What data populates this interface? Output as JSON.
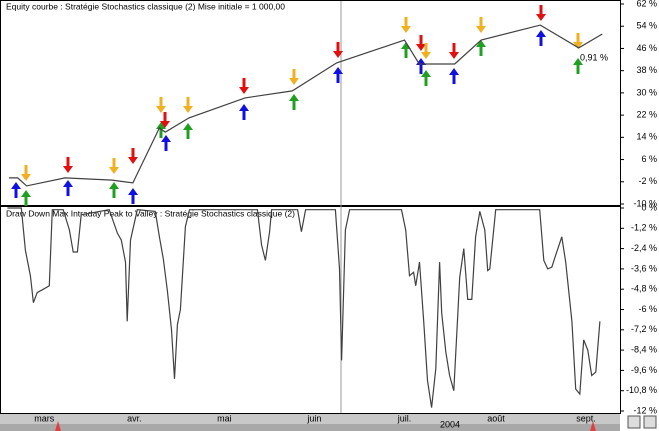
{
  "chart_data": [
    {
      "type": "line",
      "title": "Equity courbe : Stratégie Stochastics classique (2) Mise initiale = 1 000,00",
      "color": "#404040",
      "x": [
        64,
        67,
        70,
        83,
        99,
        106,
        115,
        117,
        125,
        144,
        160,
        175,
        198,
        203,
        215,
        224,
        244,
        257,
        265
      ],
      "values": [
        -0.6,
        -0.6,
        -3.5,
        -0.6,
        -1.4,
        -2.4,
        17.4,
        15.9,
        21,
        28.2,
        30.7,
        40.8,
        49,
        40.4,
        40.4,
        49,
        54.4,
        46.2,
        51.2
      ],
      "annotation": "0,91 %",
      "xlim": [
        61,
        271
      ],
      "ylim": [
        -10,
        62
      ],
      "yticks": [
        {
          "value": 62,
          "label": "62 %"
        },
        {
          "value": 54,
          "label": "54 %"
        },
        {
          "value": 46,
          "label": "46 %"
        },
        {
          "value": 38,
          "label": "38 %"
        },
        {
          "value": 30,
          "label": "30 %"
        },
        {
          "value": 22,
          "label": "22 %"
        },
        {
          "value": 14,
          "label": "14 %"
        },
        {
          "value": 6,
          "label": "6 %"
        },
        {
          "value": -2,
          "label": "-2 %"
        },
        {
          "value": -10,
          "label": "-10 %"
        }
      ]
    },
    {
      "type": "line",
      "title": "Draw Down Max Intraday Peak to Valley  : Stratégie Stochastics classique (2)",
      "color": "#404040",
      "x": [
        63.5,
        68.2,
        69.6,
        71.3,
        72.3,
        73.6,
        75.7,
        77.7,
        78.7,
        82.4,
        84.5,
        85.8,
        87.2,
        88.5,
        98,
        100.8,
        102.1,
        103.5,
        104.1,
        105.2,
        107.5,
        113.6,
        115,
        116.3,
        117.7,
        119.1,
        120.1,
        121.1,
        122.1,
        123.8,
        125.2,
        148.2,
        149.6,
        150.9,
        152.3,
        153,
        161.8,
        163.1,
        164.5,
        174.6,
        176,
        176.7,
        178,
        179.4,
        197,
        198.4,
        199.7,
        201.1,
        201.8,
        203.1,
        204.5,
        205.8,
        207.2,
        208.6,
        209.9,
        210.6,
        212,
        213.3,
        214.7,
        216,
        216.7,
        218.1,
        219.4,
        220.8,
        222.1,
        223.5,
        225.2,
        226.2,
        226.9,
        228.9,
        243.8,
        245.2,
        246.5,
        247.9,
        249.2,
        251.3,
        252.6,
        254.7,
        256,
        257.4,
        258.7,
        260.1,
        261.4,
        262.8,
        264.2
      ],
      "values": [
        0,
        0,
        -2.5,
        -4,
        -5.6,
        -5,
        -4.8,
        -4.6,
        -0.1,
        -0.1,
        -1.3,
        -2.6,
        -2.6,
        -0.4,
        -0.1,
        -1.5,
        -1.9,
        -3.2,
        -6.7,
        -1.9,
        -0.1,
        -0.2,
        -1.7,
        -3,
        -4.9,
        -7.2,
        -10.1,
        -6.9,
        -6,
        -1.1,
        -0.1,
        -0.1,
        -2.2,
        -3.1,
        -1.4,
        -0.1,
        -0.1,
        -1.4,
        -0.1,
        -0.1,
        -3.6,
        -9,
        -1.3,
        -0.1,
        -0.1,
        -1.3,
        -4,
        -3.8,
        -4.6,
        -3.2,
        -6.7,
        -10.2,
        -11.8,
        -9.5,
        -3.2,
        -6.2,
        -8.5,
        -9.9,
        -10.8,
        -6.5,
        -4.1,
        -2.4,
        -5.4,
        -5.4,
        -1.7,
        -0.2,
        -1.3,
        -3.7,
        -3.6,
        -0.1,
        -0.1,
        -3.1,
        -3.6,
        -3.5,
        -2.8,
        -1.7,
        -3.2,
        -6.7,
        -10.7,
        -11,
        -7.8,
        -8.4,
        -9.9,
        -9.7,
        -6.7
      ],
      "xlim": [
        61,
        271
      ],
      "ylim": [
        -12,
        0
      ],
      "yticks": [
        {
          "value": 0,
          "label": "0 %"
        },
        {
          "value": -1.2,
          "label": "-1,2 %"
        },
        {
          "value": -2.4,
          "label": "-2,4 %"
        },
        {
          "value": -3.6,
          "label": "-3,6 %"
        },
        {
          "value": -4.8,
          "label": "-4,8 %"
        },
        {
          "value": -6,
          "label": "-6 %"
        },
        {
          "value": -7.2,
          "label": "-7,2 %"
        },
        {
          "value": -8.4,
          "label": "-8,4 %"
        },
        {
          "value": -9.6,
          "label": "-9,6 %"
        },
        {
          "value": -10.8,
          "label": "-10,8 %"
        },
        {
          "value": -12,
          "label": "-12 %"
        }
      ],
      "xticks": [
        {
          "value": 76,
          "label": "mars"
        },
        {
          "value": 106.5,
          "label": "avr."
        },
        {
          "value": 137,
          "label": "mai"
        },
        {
          "value": 167.5,
          "label": "juin"
        },
        {
          "value": 198,
          "label": "juil."
        },
        {
          "value": 229,
          "label": "août"
        },
        {
          "value": 259.5,
          "label": "sept."
        }
      ],
      "xlabel": "2004"
    }
  ]
}
